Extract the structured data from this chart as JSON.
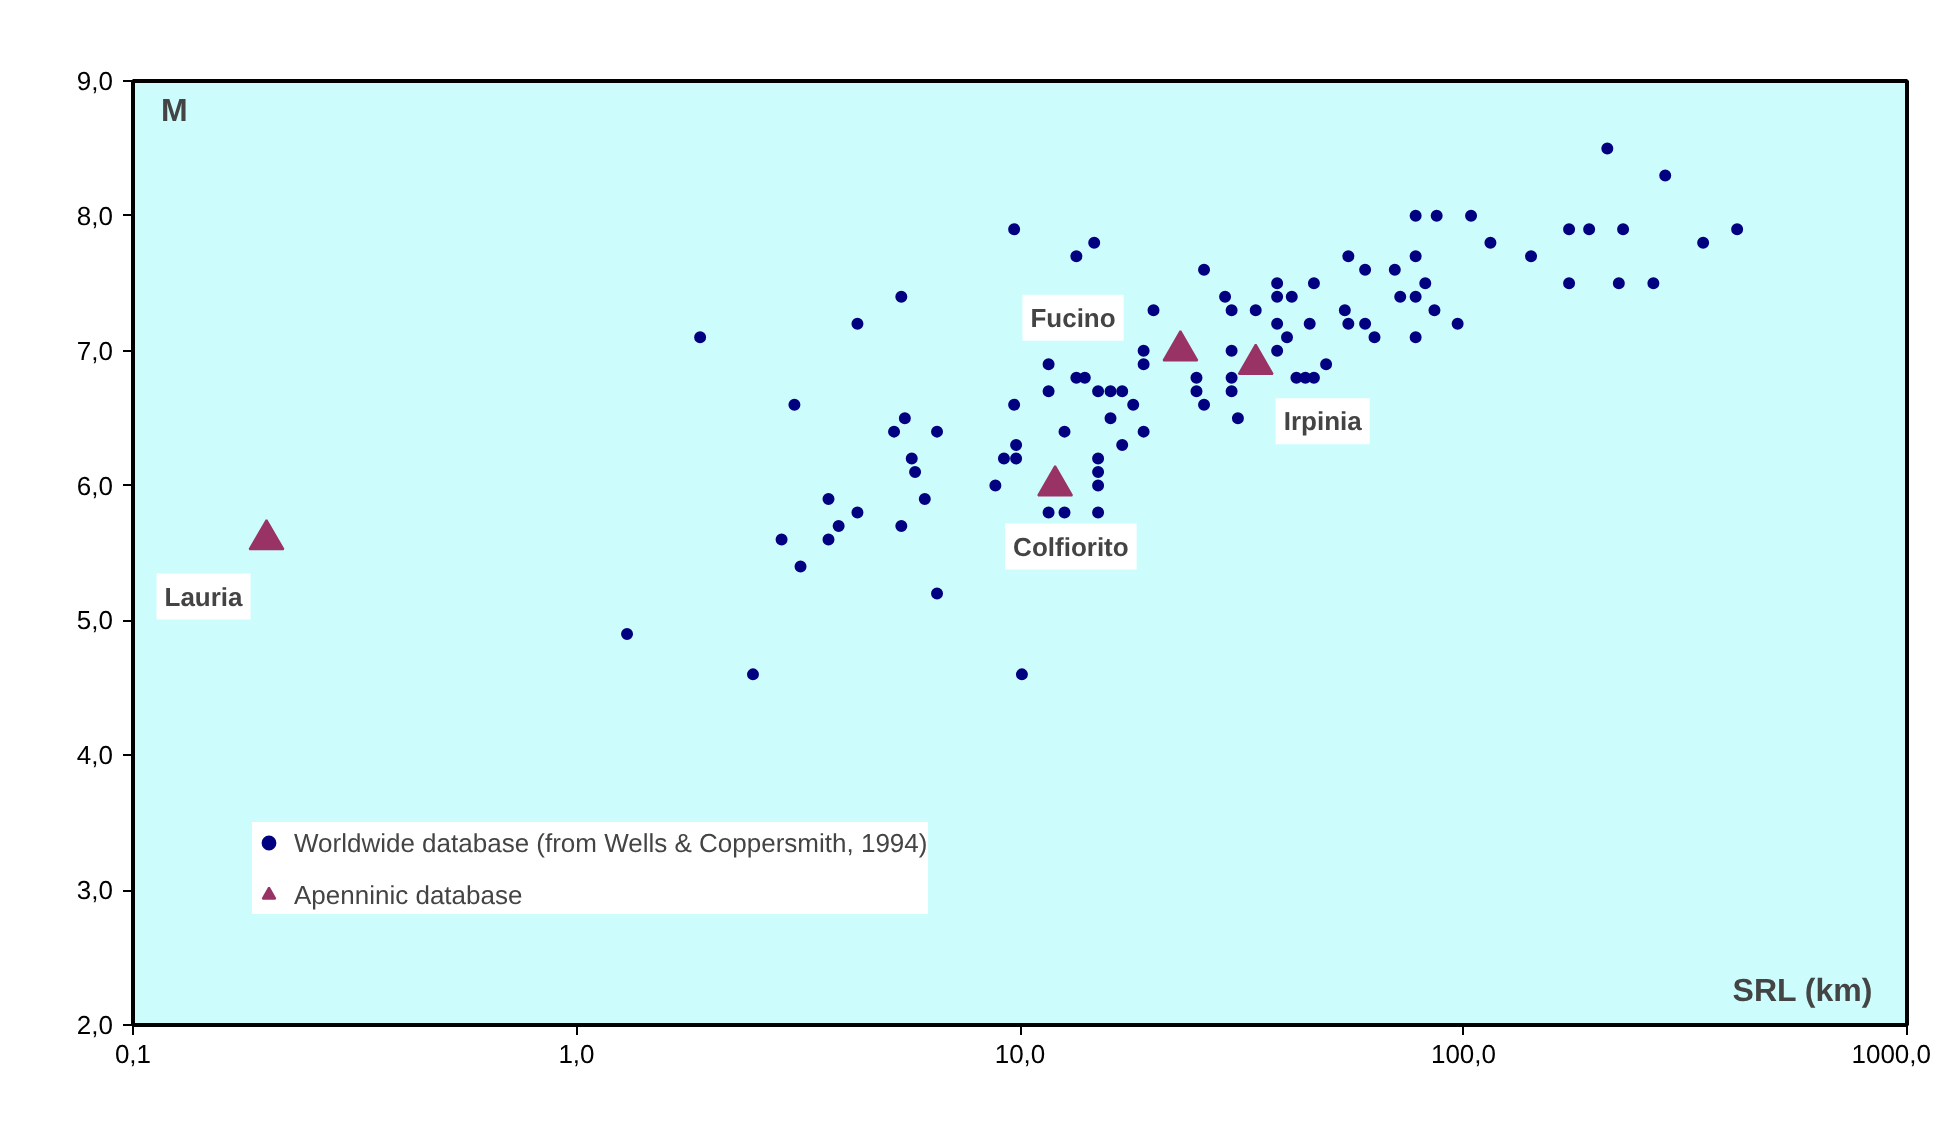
{
  "chart_data": {
    "type": "scatter",
    "xlabel": "SRL (km)",
    "ylabel": "M",
    "log": "x",
    "grid": false,
    "legend": "bottom left",
    "xlim": [
      0.1,
      1000
    ],
    "ylim": [
      2,
      9
    ],
    "xticks": [
      {
        "value": 0.1,
        "label": "0,1"
      },
      {
        "value": 1,
        "label": "1,0"
      },
      {
        "value": 10,
        "label": "10,0"
      },
      {
        "value": 100,
        "label": "100,0"
      },
      {
        "value": 1000,
        "label": "1000,0"
      }
    ],
    "yticks": [
      {
        "value": 2,
        "label": "2,0"
      },
      {
        "value": 3,
        "label": "3,0"
      },
      {
        "value": 4,
        "label": "4,0"
      },
      {
        "value": 5,
        "label": "5,0"
      },
      {
        "value": 6,
        "label": "6,0"
      },
      {
        "value": 7,
        "label": "7,0"
      },
      {
        "value": 8,
        "label": "8,0"
      },
      {
        "value": 9,
        "label": "9,0"
      }
    ],
    "series": [
      {
        "name": "Worldwide database (from Wells & Coppersmith, 1994)",
        "color": "#000080",
        "marker": "circle",
        "x": [
          9.7,
          13.4,
          14.7,
          5.4,
          4.3,
          1.9,
          11.6,
          13.4,
          11.6,
          3.1,
          9.7,
          5.5,
          5.2,
          6.5,
          12.6,
          9.8,
          5.7,
          9.2,
          9.8,
          5.8,
          8.8,
          3.7,
          6.1,
          4.3,
          11.6,
          12.6,
          3.9,
          5.4,
          2.9,
          3.7,
          3.2,
          6.5,
          1.3,
          2.5,
          10.1,
          26,
          55,
          60,
          70,
          78,
          78,
          87,
          104,
          38,
          46,
          29,
          38,
          41,
          72,
          78,
          82,
          20,
          30,
          34,
          54,
          86,
          38,
          45,
          55,
          60,
          97,
          40,
          63,
          78,
          19,
          30,
          38,
          19,
          49,
          25,
          30,
          42,
          44,
          46,
          14,
          15,
          16,
          17,
          25,
          30,
          18,
          26,
          16,
          31,
          19,
          17,
          15,
          15,
          15,
          15,
          211,
          285,
          115,
          142,
          173,
          192,
          229,
          347,
          414,
          173,
          224,
          268
        ],
        "values": [
          7.9,
          7.7,
          7.8,
          7.4,
          7.2,
          7.1,
          6.9,
          6.8,
          6.7,
          6.6,
          6.6,
          6.5,
          6.4,
          6.4,
          6.4,
          6.3,
          6.2,
          6.2,
          6.2,
          6.1,
          6.0,
          5.9,
          5.9,
          5.8,
          5.8,
          5.8,
          5.7,
          5.7,
          5.6,
          5.6,
          5.4,
          5.2,
          4.9,
          4.6,
          4.6,
          7.6,
          7.7,
          7.6,
          7.6,
          7.7,
          8.0,
          8.0,
          8.0,
          7.5,
          7.5,
          7.4,
          7.4,
          7.4,
          7.4,
          7.4,
          7.5,
          7.3,
          7.3,
          7.3,
          7.3,
          7.3,
          7.2,
          7.2,
          7.2,
          7.2,
          7.2,
          7.1,
          7.1,
          7.1,
          7.0,
          7.0,
          7.0,
          6.9,
          6.9,
          6.8,
          6.8,
          6.8,
          6.8,
          6.8,
          6.8,
          6.7,
          6.7,
          6.7,
          6.7,
          6.7,
          6.6,
          6.6,
          6.5,
          6.5,
          6.4,
          6.3,
          6.2,
          6.1,
          6.0,
          5.8,
          8.5,
          8.3,
          7.8,
          7.7,
          7.9,
          7.9,
          7.9,
          7.8,
          7.9,
          7.5,
          7.5,
          7.5
        ]
      },
      {
        "name": "Apenninic database",
        "color": "#993366",
        "marker": "triangle",
        "x": [
          0.2,
          12,
          23,
          34
        ],
        "values": [
          5.6,
          6.0,
          7.0,
          6.9
        ]
      }
    ],
    "annotations": [
      {
        "text": "Lauria",
        "x": 0.2,
        "y": 5.6
      },
      {
        "text": "Colfiorito",
        "x": 12,
        "y": 6.0
      },
      {
        "text": "Fucino",
        "x": 23,
        "y": 7.0
      },
      {
        "text": "Irpinia",
        "x": 34,
        "y": 6.9
      }
    ]
  }
}
